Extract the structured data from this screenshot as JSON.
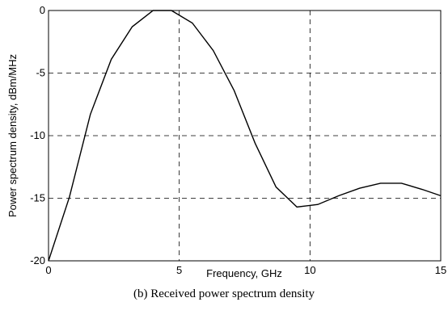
{
  "chart_data": {
    "type": "line",
    "caption": "(b) Received power spectrum density",
    "x_label": "Frequency, GHz",
    "y_label": "Power spectrum density, dBm/MHz",
    "x": [
      0,
      0.8,
      1.6,
      2.4,
      3.2,
      4,
      4.7,
      5.5,
      6.3,
      7.1,
      7.9,
      8.7,
      9.5,
      10.3,
      11.1,
      11.9,
      12.7,
      13.5,
      14.3,
      15
    ],
    "series": [
      {
        "color": "#000000",
        "values": [
          -20,
          -14.9,
          -8.3,
          -3.9,
          -1.3,
          0,
          0,
          -1,
          -3.2,
          -6.4,
          -10.6,
          -14.1,
          -15.7,
          -15.5,
          -14.8,
          -14.2,
          -13.8,
          -13.8,
          -14.3,
          -14.8
        ]
      }
    ],
    "xlim": [
      0,
      15
    ],
    "xticks": [
      0,
      5,
      10,
      15
    ],
    "ylim": [
      -20,
      0
    ],
    "yticks": [
      0,
      -5,
      -10,
      -15,
      -20
    ],
    "grid": true
  }
}
